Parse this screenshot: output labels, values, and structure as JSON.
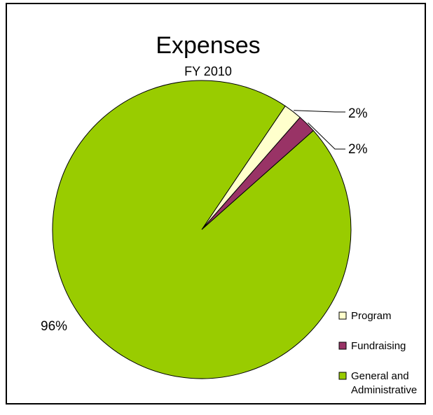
{
  "chart_data": {
    "type": "pie",
    "title": "Expenses",
    "subtitle": "FY 2010",
    "series": [
      {
        "name": "Program",
        "value": 2,
        "label": "2%",
        "color": "#ffffcc"
      },
      {
        "name": "Fundraising",
        "value": 2,
        "label": "2%",
        "color": "#993366"
      },
      {
        "name": "General and Administrative",
        "name_lines": [
          "General and",
          "Administrative"
        ],
        "value": 96,
        "label": "96%",
        "color": "#99cc00"
      }
    ],
    "legend_position": "bottom-right",
    "start_angle_deg": 56
  }
}
